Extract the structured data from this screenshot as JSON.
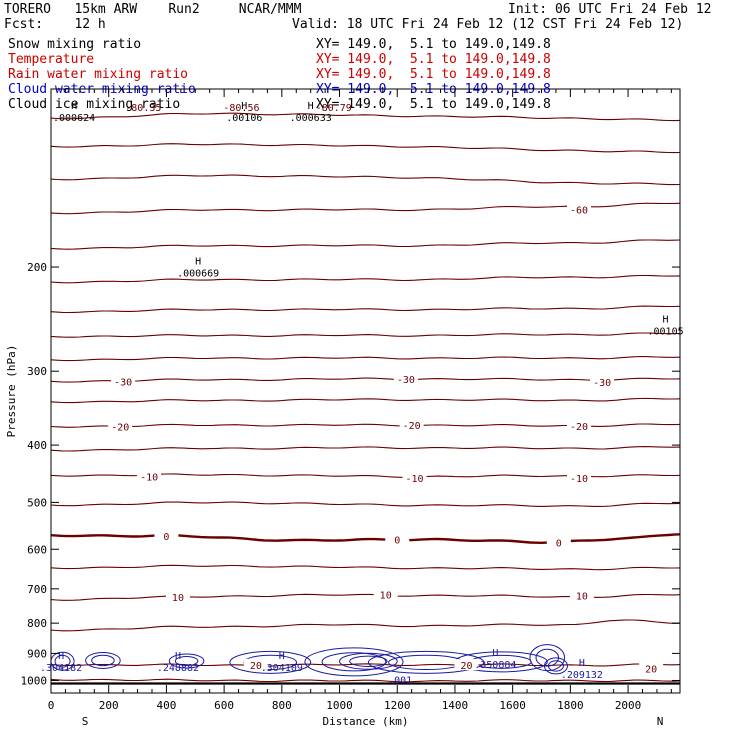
{
  "header": {
    "model": "TORERO   15km ARW    Run2     NCAR/MMM",
    "init": "Init: 06 UTC Fri 24 Feb 12",
    "fcst": "Fcst:    12 h",
    "valid": "Valid: 18 UTC Fri 24 Feb 12 (12 CST Fri 24 Feb 12)"
  },
  "fields": [
    {
      "name": "Snow mixing ratio",
      "xy": "XY= 149.0,  5.1 to 149.0,149.8",
      "color": "#000000"
    },
    {
      "name": "Temperature",
      "xy": "XY= 149.0,  5.1 to 149.0,149.8",
      "color": "#cc0000"
    },
    {
      "name": "Rain water mixing ratio",
      "xy": "XY= 149.0,  5.1 to 149.0,149.8",
      "color": "#cc0000"
    },
    {
      "name": "Cloud water mixing ratio",
      "xy": "XY= 149.0,  5.1 to 149.0,149.8",
      "color": "#0000cc"
    },
    {
      "name": "Cloud ice mixing ratio",
      "xy": "XY= 149.0,  5.1 to 149.0,149.8",
      "color": "#000000"
    }
  ],
  "chart_data": {
    "type": "line",
    "title": "Cross section: Temperature (C) and hydrometeor mixing ratios",
    "xlabel": "Distance (km)",
    "ylabel": "Pressure (hPa)",
    "xlim": [
      0,
      2180
    ],
    "ylim": [
      1050,
      100
    ],
    "y_scale": "log",
    "x_ticks": [
      0,
      200,
      400,
      600,
      800,
      1000,
      1200,
      1400,
      1600,
      1800,
      2000
    ],
    "y_ticks": [
      200,
      300,
      400,
      500,
      600,
      700,
      800,
      900,
      1000
    ],
    "x_end_labels": {
      "left": "S",
      "right": "N"
    },
    "isotherm_interval": 5,
    "isotherms": [
      {
        "value": -75,
        "x": [
          0,
          600,
          1200,
          1800,
          2180
        ],
        "p": [
          112,
          110,
          111,
          112,
          113
        ]
      },
      {
        "value": -70,
        "x": [
          0,
          600,
          1200,
          1800,
          2180
        ],
        "p": [
          125,
          124,
          125,
          127,
          128
        ]
      },
      {
        "value": -65,
        "x": [
          0,
          600,
          1200,
          1800,
          2180
        ],
        "p": [
          142,
          140,
          141,
          144,
          145
        ]
      },
      {
        "value": -60,
        "x": [
          0,
          600,
          1200,
          1800,
          2180
        ],
        "p": [
          162,
          160,
          160,
          158,
          156
        ]
      },
      {
        "value": -55,
        "x": [
          0,
          600,
          1200,
          1800,
          2180
        ],
        "p": [
          186,
          184,
          184,
          182,
          180
        ]
      },
      {
        "value": -50,
        "x": [
          0,
          600,
          1200,
          1800,
          2180
        ],
        "p": [
          212,
          210,
          210,
          208,
          207
        ]
      },
      {
        "value": -45,
        "x": [
          0,
          600,
          1200,
          1800,
          2180
        ],
        "p": [
          238,
          236,
          236,
          235,
          233
        ]
      },
      {
        "value": -40,
        "x": [
          0,
          600,
          1200,
          1800,
          2180
        ],
        "p": [
          262,
          261,
          261,
          260,
          259
        ]
      },
      {
        "value": -35,
        "x": [
          0,
          600,
          1200,
          1800,
          2180
        ],
        "p": [
          287,
          285,
          285,
          285,
          284
        ]
      },
      {
        "value": -30,
        "x": [
          0,
          600,
          1200,
          1800,
          2180
        ],
        "p": [
          312,
          310,
          309,
          310,
          309
        ]
      },
      {
        "value": -25,
        "x": [
          0,
          600,
          1200,
          1800,
          2180
        ],
        "p": [
          338,
          336,
          335,
          336,
          334
        ]
      },
      {
        "value": -20,
        "x": [
          0,
          600,
          1200,
          1800,
          2180
        ],
        "p": [
          372,
          370,
          370,
          371,
          369
        ]
      },
      {
        "value": -15,
        "x": [
          0,
          600,
          1200,
          1800,
          2180
        ],
        "p": [
          408,
          405,
          404,
          405,
          403
        ]
      },
      {
        "value": -10,
        "x": [
          0,
          600,
          1200,
          1800,
          2180
        ],
        "p": [
          450,
          449,
          452,
          451,
          450
        ]
      },
      {
        "value": -5,
        "x": [
          0,
          600,
          1200,
          1800,
          2180
        ],
        "p": [
          505,
          500,
          505,
          507,
          502
        ]
      },
      {
        "value": 0,
        "x": [
          0,
          400,
          900,
          1300,
          1700,
          2000,
          2180
        ],
        "p": [
          568,
          570,
          580,
          577,
          584,
          575,
          566
        ]
      },
      {
        "value": 5,
        "x": [
          0,
          600,
          1200,
          1800,
          2180
        ],
        "p": [
          645,
          640,
          645,
          648,
          645
        ]
      },
      {
        "value": 10,
        "x": [
          0,
          400,
          900,
          1300,
          1800,
          2180
        ],
        "p": [
          730,
          723,
          717,
          718,
          722,
          716
        ]
      },
      {
        "value": 15,
        "x": [
          0,
          500,
          1000,
          1200,
          1800,
          1950,
          2180
        ],
        "p": [
          822,
          812,
          805,
          808,
          805,
          790,
          800
        ]
      },
      {
        "value": 20,
        "x": [
          0,
          600,
          1200,
          1800,
          2180
        ],
        "p": [
          940,
          942,
          940,
          942,
          940
        ]
      },
      {
        "value": 25,
        "x": [
          0,
          600,
          1200,
          1800,
          2180
        ],
        "p": [
          996,
          1000,
          1002,
          1000,
          1002
        ]
      }
    ],
    "contour_labels": [
      {
        "text": "-60",
        "x": 1830,
        "p": 160
      },
      {
        "text": "-30",
        "x": 250,
        "p": 312
      },
      {
        "text": "-30",
        "x": 1230,
        "p": 309
      },
      {
        "text": "-30",
        "x": 1910,
        "p": 313
      },
      {
        "text": "-20",
        "x": 240,
        "p": 372
      },
      {
        "text": "-20",
        "x": 1250,
        "p": 370
      },
      {
        "text": "-20",
        "x": 1830,
        "p": 371
      },
      {
        "text": "-10",
        "x": 340,
        "p": 452
      },
      {
        "text": "-10",
        "x": 1260,
        "p": 455
      },
      {
        "text": "-10",
        "x": 1830,
        "p": 455
      },
      {
        "text": "0",
        "x": 400,
        "p": 570
      },
      {
        "text": "0",
        "x": 1200,
        "p": 578
      },
      {
        "text": "0",
        "x": 1760,
        "p": 584
      },
      {
        "text": "10",
        "x": 440,
        "p": 723
      },
      {
        "text": "10",
        "x": 1160,
        "p": 716
      },
      {
        "text": "10",
        "x": 1840,
        "p": 718
      },
      {
        "text": "20",
        "x": 710,
        "p": 941
      },
      {
        "text": "20",
        "x": 1440,
        "p": 942
      },
      {
        "text": "20",
        "x": 2080,
        "p": 955
      }
    ],
    "cloud_water_maxima": [
      {
        "label": "H",
        "value": ".304182",
        "x": 35,
        "p": 920
      },
      {
        "label": "H",
        "value": ".248882",
        "x": 440,
        "p": 920
      },
      {
        "label": "H",
        "value": ".304109",
        "x": 800,
        "p": 920
      },
      {
        "label": "H",
        "value": ".350884",
        "x": 1540,
        "p": 910
      },
      {
        "label": "H",
        "value": ".209132",
        "x": 1840,
        "p": 945
      },
      {
        "label": "",
        "value": ".001",
        "x": 1210,
        "p": 965
      }
    ],
    "cloud_ice_maxima": [
      {
        "label": "H",
        "value": ".000624",
        "x": 80,
        "p": 108
      },
      {
        "label": "H",
        "value": ".00106",
        "x": 670,
        "p": 108
      },
      {
        "label": "H",
        "value": ".000633",
        "x": 900,
        "p": 108
      },
      {
        "label": "H",
        "value": ".000669",
        "x": 510,
        "p": 198
      },
      {
        "label": "H",
        "value": ".00105",
        "x": 2130,
        "p": 248
      }
    ],
    "temperature_maxima_top": [
      {
        "label": "",
        "value": "-80.35",
        "x": 320,
        "p": 104
      },
      {
        "label": "",
        "value": "-80.56",
        "x": 660,
        "p": 104
      },
      {
        "label": "",
        "value": "-80.79",
        "x": 980,
        "p": 104
      }
    ]
  }
}
